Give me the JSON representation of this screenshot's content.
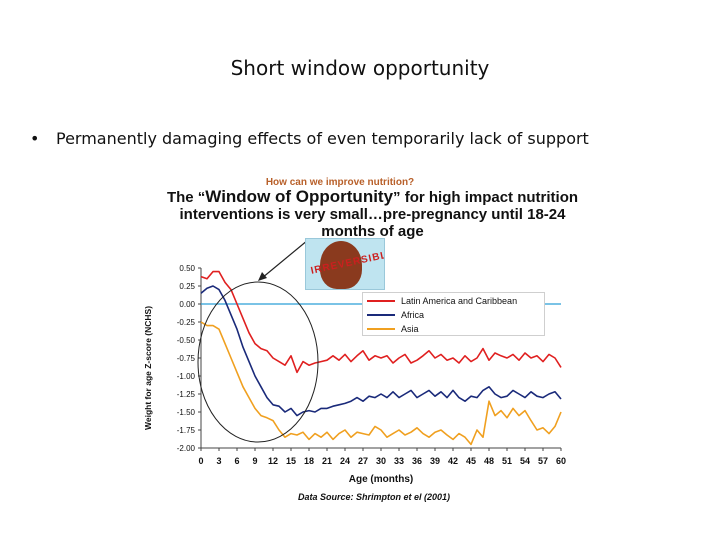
{
  "slide": {
    "title": "Short window opportunity",
    "bullet_marker": "•",
    "bullet": "Permanently damaging effects of even temporarily lack of support"
  },
  "figure": {
    "subtitle": "How can we improve nutrition?",
    "title_line1_pre": "The “",
    "title_line1_bold": "Window of Opportunity",
    "title_line1_post": "” for high impact nutrition",
    "title_line2": "interventions is very small…pre-pregnancy until 18-24",
    "title_line3": "months of age",
    "badge_text": "IRREVERSIBLE",
    "source": "Data Source: Shrimpton et el (2001)"
  },
  "colors": {
    "latin_america": "#e02020",
    "africa": "#1a2a7a",
    "asia": "#f0a020",
    "zero_line": "#2a9fd6"
  },
  "chart_data": {
    "type": "line",
    "title": "",
    "xlabel": "Age (months)",
    "ylabel": "Weight for age Z-score (NCHS)",
    "xlim": [
      0,
      60
    ],
    "ylim": [
      -2.0,
      0.5
    ],
    "xticks": [
      "0",
      "3",
      "6",
      "9",
      "12",
      "15",
      "18",
      "21",
      "24",
      "27",
      "30",
      "33",
      "36",
      "39",
      "42",
      "45",
      "48",
      "51",
      "54",
      "57",
      "60"
    ],
    "yticks": [
      "0.50",
      "0.25",
      "0.00",
      "-0.25",
      "-0.50",
      "-0.75",
      "-1.00",
      "-1.25",
      "-1.50",
      "-1.75",
      "-2.00"
    ],
    "legend_position": "right",
    "series": [
      {
        "name": "Latin America and Caribbean",
        "x": [
          0,
          1,
          2,
          3,
          4,
          5,
          6,
          7,
          8,
          9,
          10,
          11,
          12,
          13,
          14,
          15,
          16,
          17,
          18,
          19,
          20,
          21,
          22,
          23,
          24,
          25,
          26,
          27,
          28,
          29,
          30,
          31,
          32,
          33,
          34,
          35,
          36,
          37,
          38,
          39,
          40,
          41,
          42,
          43,
          44,
          45,
          46,
          47,
          48,
          49,
          50,
          51,
          52,
          53,
          54,
          55,
          56,
          57,
          58,
          59,
          60
        ],
        "values": [
          0.38,
          0.35,
          0.45,
          0.45,
          0.3,
          0.2,
          0.0,
          -0.2,
          -0.4,
          -0.55,
          -0.62,
          -0.65,
          -0.75,
          -0.8,
          -0.85,
          -0.72,
          -0.95,
          -0.8,
          -0.85,
          -0.82,
          -0.8,
          -0.78,
          -0.72,
          -0.78,
          -0.7,
          -0.8,
          -0.72,
          -0.65,
          -0.78,
          -0.72,
          -0.75,
          -0.72,
          -0.82,
          -0.75,
          -0.7,
          -0.82,
          -0.78,
          -0.72,
          -0.65,
          -0.75,
          -0.7,
          -0.78,
          -0.75,
          -0.82,
          -0.72,
          -0.8,
          -0.75,
          -0.62,
          -0.78,
          -0.68,
          -0.72,
          -0.75,
          -0.7,
          -0.78,
          -0.68,
          -0.75,
          -0.72,
          -0.8,
          -0.7,
          -0.75,
          -0.88
        ]
      },
      {
        "name": "Africa",
        "x": [
          0,
          1,
          2,
          3,
          4,
          5,
          6,
          7,
          8,
          9,
          10,
          11,
          12,
          13,
          14,
          15,
          16,
          17,
          18,
          19,
          20,
          21,
          22,
          23,
          24,
          25,
          26,
          27,
          28,
          29,
          30,
          31,
          32,
          33,
          34,
          35,
          36,
          37,
          38,
          39,
          40,
          41,
          42,
          43,
          44,
          45,
          46,
          47,
          48,
          49,
          50,
          51,
          52,
          53,
          54,
          55,
          56,
          57,
          58,
          59,
          60
        ],
        "values": [
          0.15,
          0.22,
          0.25,
          0.2,
          0.05,
          -0.15,
          -0.35,
          -0.6,
          -0.8,
          -1.0,
          -1.15,
          -1.3,
          -1.4,
          -1.42,
          -1.5,
          -1.45,
          -1.55,
          -1.5,
          -1.48,
          -1.5,
          -1.45,
          -1.45,
          -1.42,
          -1.4,
          -1.38,
          -1.35,
          -1.3,
          -1.35,
          -1.28,
          -1.3,
          -1.25,
          -1.3,
          -1.22,
          -1.3,
          -1.25,
          -1.2,
          -1.3,
          -1.25,
          -1.2,
          -1.28,
          -1.22,
          -1.3,
          -1.2,
          -1.3,
          -1.35,
          -1.28,
          -1.3,
          -1.2,
          -1.15,
          -1.25,
          -1.3,
          -1.28,
          -1.2,
          -1.25,
          -1.3,
          -1.22,
          -1.28,
          -1.3,
          -1.25,
          -1.22,
          -1.32
        ]
      },
      {
        "name": "Asia",
        "x": [
          0,
          1,
          2,
          3,
          4,
          5,
          6,
          7,
          8,
          9,
          10,
          11,
          12,
          13,
          14,
          15,
          16,
          17,
          18,
          19,
          20,
          21,
          22,
          23,
          24,
          25,
          26,
          27,
          28,
          29,
          30,
          31,
          32,
          33,
          34,
          35,
          36,
          37,
          38,
          39,
          40,
          41,
          42,
          43,
          44,
          45,
          46,
          47,
          48,
          49,
          50,
          51,
          52,
          53,
          54,
          55,
          56,
          57,
          58,
          59,
          60
        ],
        "values": [
          -0.25,
          -0.3,
          -0.3,
          -0.35,
          -0.55,
          -0.75,
          -0.95,
          -1.15,
          -1.3,
          -1.45,
          -1.55,
          -1.58,
          -1.62,
          -1.75,
          -1.85,
          -1.8,
          -1.82,
          -1.78,
          -1.88,
          -1.8,
          -1.85,
          -1.78,
          -1.88,
          -1.8,
          -1.75,
          -1.85,
          -1.78,
          -1.8,
          -1.82,
          -1.7,
          -1.75,
          -1.85,
          -1.8,
          -1.75,
          -1.82,
          -1.78,
          -1.72,
          -1.8,
          -1.85,
          -1.78,
          -1.75,
          -1.82,
          -1.88,
          -1.8,
          -1.85,
          -1.95,
          -1.75,
          -1.85,
          -1.35,
          -1.55,
          -1.48,
          -1.58,
          -1.45,
          -1.55,
          -1.48,
          -1.62,
          -1.75,
          -1.72,
          -1.8,
          -1.7,
          -1.5
        ]
      }
    ]
  }
}
